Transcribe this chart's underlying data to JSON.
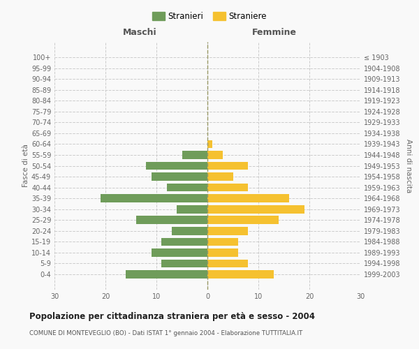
{
  "age_groups": [
    "100+",
    "95-99",
    "90-94",
    "85-89",
    "80-84",
    "75-79",
    "70-74",
    "65-69",
    "60-64",
    "55-59",
    "50-54",
    "45-49",
    "40-44",
    "35-39",
    "30-34",
    "25-29",
    "20-24",
    "15-19",
    "10-14",
    "5-9",
    "0-4"
  ],
  "birth_years": [
    "≤ 1903",
    "1904-1908",
    "1909-1913",
    "1914-1918",
    "1919-1923",
    "1924-1928",
    "1929-1933",
    "1934-1938",
    "1939-1943",
    "1944-1948",
    "1949-1953",
    "1954-1958",
    "1959-1963",
    "1964-1968",
    "1969-1973",
    "1974-1978",
    "1979-1983",
    "1984-1988",
    "1989-1993",
    "1994-1998",
    "1999-2003"
  ],
  "maschi": [
    0,
    0,
    0,
    0,
    0,
    0,
    0,
    0,
    0,
    5,
    12,
    11,
    8,
    21,
    6,
    14,
    7,
    9,
    11,
    9,
    16
  ],
  "femmine": [
    0,
    0,
    0,
    0,
    0,
    0,
    0,
    0,
    1,
    3,
    8,
    5,
    8,
    16,
    19,
    14,
    8,
    6,
    6,
    8,
    13
  ],
  "color_maschi": "#6f9c5a",
  "color_femmine": "#f5c130",
  "title": "Popolazione per cittadinanza straniera per età e sesso - 2004",
  "subtitle": "COMUNE DI MONTEVEGLIO (BO) - Dati ISTAT 1° gennaio 2004 - Elaborazione TUTTITALIA.IT",
  "ylabel_left": "Fasce di età",
  "ylabel_right": "Anni di nascita",
  "xlabel_left": "Maschi",
  "xlabel_right": "Femmine",
  "legend_stranieri": "Stranieri",
  "legend_straniere": "Straniere",
  "xlim": 30,
  "bg_color": "#f9f9f9",
  "grid_color": "#cccccc",
  "center_line_color": "#999966"
}
